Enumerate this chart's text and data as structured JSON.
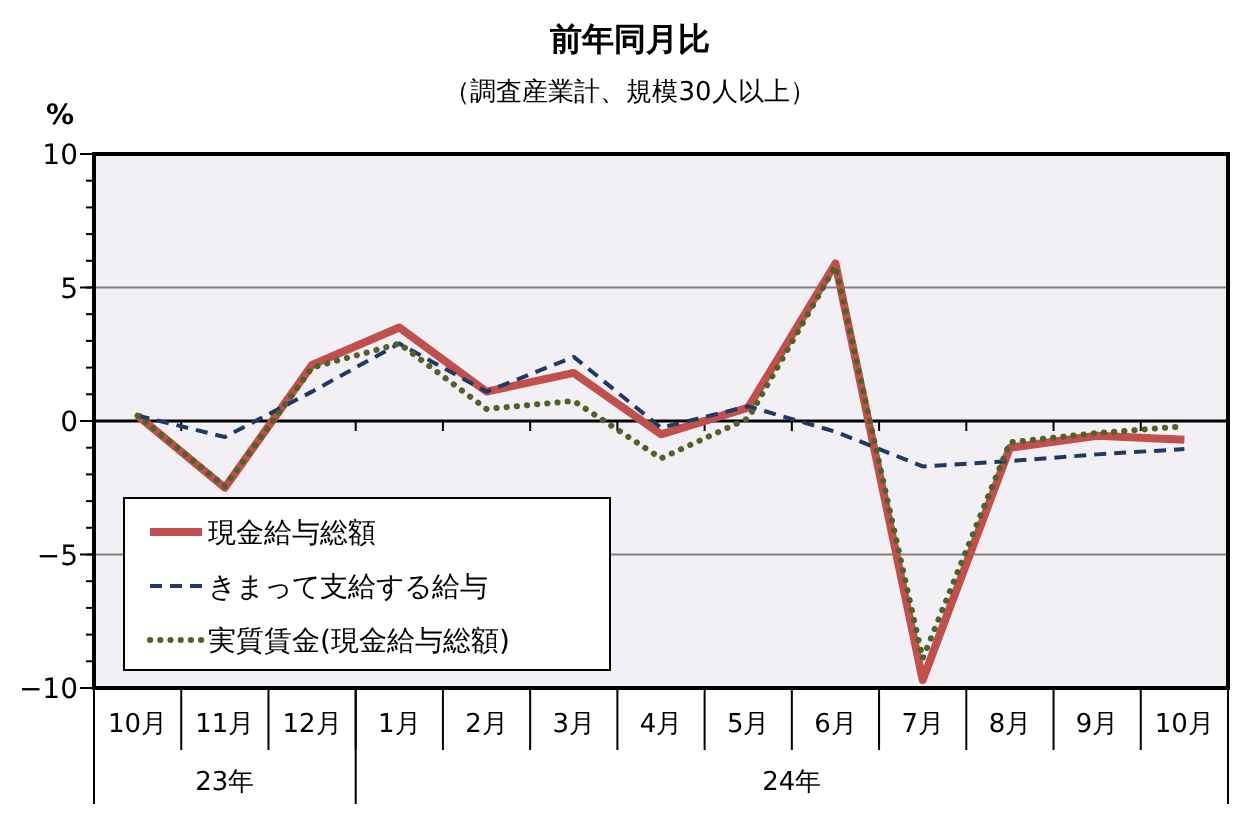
{
  "chart_data": {
    "type": "line",
    "title": "前年同月比",
    "subtitle": "（調査産業計、規模30人以上）",
    "ylabel": "%",
    "categories": [
      "10月",
      "11月",
      "12月",
      "1月",
      "2月",
      "3月",
      "4月",
      "5月",
      "6月",
      "7月",
      "8月",
      "9月",
      "10月"
    ],
    "annotations": [
      "23年",
      "24年"
    ],
    "ylim": [
      -10,
      10
    ],
    "yticks": [
      -10,
      -5,
      0,
      5,
      10
    ],
    "grid": "y",
    "legend": "bottom left",
    "marker": "none",
    "series": [
      {
        "name": "現金給与総額",
        "color": "#c0504d",
        "line_style": "solid",
        "values": [
          0.2,
          -2.5,
          2.1,
          3.5,
          1.1,
          1.8,
          -0.5,
          0.5,
          5.9,
          -9.7,
          -1.0,
          -0.55,
          -0.7
        ]
      },
      {
        "name": "きまって支給する給与",
        "color": "#1f3864",
        "line_style": "dashed",
        "values": [
          0.2,
          -0.6,
          1.1,
          2.9,
          1.1,
          2.4,
          -0.25,
          0.55,
          -0.4,
          -1.7,
          -1.5,
          -1.25,
          -1.05
        ]
      },
      {
        "name": "実質賃金(現金給与総額)",
        "color": "#4f6228",
        "line_style": "dotted",
        "values": [
          0.2,
          -2.45,
          2.0,
          2.9,
          0.45,
          0.75,
          -1.4,
          0.1,
          5.8,
          -8.9,
          -0.8,
          -0.45,
          -0.2
        ]
      }
    ]
  }
}
